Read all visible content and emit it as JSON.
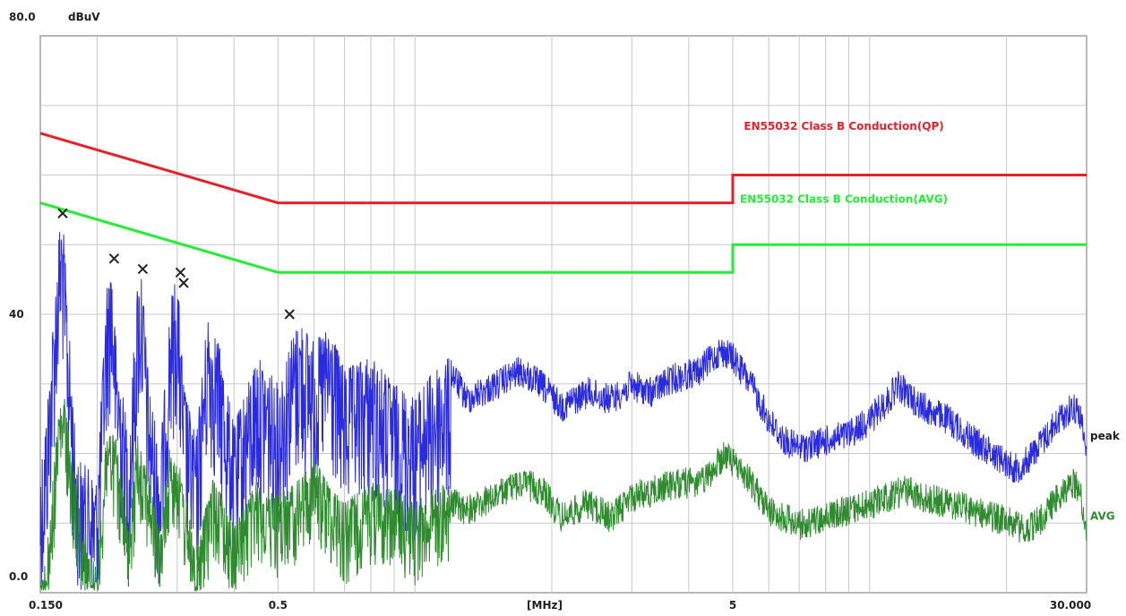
{
  "chart_data": {
    "type": "line",
    "title": "",
    "y_unit_label": "dBuV",
    "x_unit_label": "[MHz]",
    "x_scale": "log",
    "xlim": [
      0.15,
      30.0
    ],
    "ylim": [
      0,
      80
    ],
    "grid": true,
    "x_tick_labels": [
      {
        "value": 0.15,
        "label": "0.150"
      },
      {
        "value": 0.5,
        "label": "0.5"
      },
      {
        "value": 5,
        "label": "5"
      },
      {
        "value": 30,
        "label": "30.000"
      }
    ],
    "y_tick_labels": [
      {
        "value": 80,
        "label": "80.0"
      },
      {
        "value": 40,
        "label": "40"
      },
      {
        "value": 0,
        "label": "0.0"
      }
    ],
    "limit_lines": [
      {
        "name": "EN55032 Class B Conduction(QP)",
        "color": "#e8202a",
        "points": [
          [
            0.15,
            66
          ],
          [
            0.5,
            56
          ],
          [
            5,
            56
          ],
          [
            5,
            60
          ],
          [
            30,
            60
          ]
        ]
      },
      {
        "name": "EN55032 Class B Conduction(AVG)",
        "color": "#22ee33",
        "points": [
          [
            0.15,
            56
          ],
          [
            0.5,
            46
          ],
          [
            5,
            46
          ],
          [
            5,
            50
          ],
          [
            30,
            50
          ]
        ]
      }
    ],
    "series": [
      {
        "name": "peak",
        "color": "#2a2ae0",
        "envelope": [
          [
            0.15,
            18
          ],
          [
            0.155,
            26
          ],
          [
            0.165,
            52
          ],
          [
            0.168,
            54
          ],
          [
            0.172,
            42
          ],
          [
            0.18,
            20
          ],
          [
            0.2,
            16
          ],
          [
            0.21,
            44
          ],
          [
            0.215,
            48
          ],
          [
            0.22,
            36
          ],
          [
            0.235,
            22
          ],
          [
            0.245,
            44
          ],
          [
            0.25,
            47
          ],
          [
            0.26,
            30
          ],
          [
            0.275,
            20
          ],
          [
            0.29,
            42
          ],
          [
            0.3,
            46
          ],
          [
            0.31,
            30
          ],
          [
            0.33,
            22
          ],
          [
            0.35,
            40
          ],
          [
            0.37,
            36
          ],
          [
            0.4,
            24
          ],
          [
            0.45,
            34
          ],
          [
            0.5,
            30
          ],
          [
            0.53,
            36
          ],
          [
            0.56,
            39
          ],
          [
            0.6,
            36
          ],
          [
            0.65,
            38
          ],
          [
            0.7,
            32
          ],
          [
            0.8,
            34
          ],
          [
            0.9,
            30
          ],
          [
            1.0,
            28
          ],
          [
            1.1,
            32
          ],
          [
            1.2,
            34
          ],
          [
            1.3,
            30
          ],
          [
            1.5,
            32
          ],
          [
            1.7,
            34
          ],
          [
            1.9,
            32
          ],
          [
            2.1,
            29
          ],
          [
            2.4,
            31
          ],
          [
            2.7,
            30
          ],
          [
            3.0,
            32
          ],
          [
            3.3,
            31
          ],
          [
            3.7,
            33
          ],
          [
            4.2,
            34
          ],
          [
            4.7,
            37
          ],
          [
            5.0,
            36
          ],
          [
            5.5,
            32
          ],
          [
            6.0,
            27
          ],
          [
            6.5,
            24
          ],
          [
            7.0,
            23
          ],
          [
            8.0,
            24
          ],
          [
            9.0,
            25
          ],
          [
            10.0,
            27
          ],
          [
            11.0,
            30
          ],
          [
            11.5,
            32
          ],
          [
            12.0,
            31
          ],
          [
            13.0,
            29
          ],
          [
            15.0,
            27
          ],
          [
            17.0,
            24
          ],
          [
            19.0,
            22
          ],
          [
            21.0,
            20
          ],
          [
            22.0,
            21
          ],
          [
            24.0,
            24
          ],
          [
            26.0,
            27
          ],
          [
            28.0,
            29
          ],
          [
            29.0,
            28
          ],
          [
            30.0,
            22
          ]
        ]
      },
      {
        "name": "AVG",
        "color": "#2e8b2e",
        "envelope": [
          [
            0.15,
            3
          ],
          [
            0.155,
            6
          ],
          [
            0.165,
            27
          ],
          [
            0.17,
            28
          ],
          [
            0.175,
            20
          ],
          [
            0.19,
            6
          ],
          [
            0.2,
            4
          ],
          [
            0.21,
            24
          ],
          [
            0.22,
            22
          ],
          [
            0.235,
            8
          ],
          [
            0.245,
            23
          ],
          [
            0.255,
            20
          ],
          [
            0.275,
            8
          ],
          [
            0.29,
            22
          ],
          [
            0.3,
            20
          ],
          [
            0.33,
            6
          ],
          [
            0.36,
            17
          ],
          [
            0.4,
            10
          ],
          [
            0.45,
            16
          ],
          [
            0.5,
            14
          ],
          [
            0.55,
            16
          ],
          [
            0.6,
            19
          ],
          [
            0.7,
            13
          ],
          [
            0.8,
            16
          ],
          [
            0.9,
            15
          ],
          [
            1.0,
            13
          ],
          [
            1.15,
            16
          ],
          [
            1.3,
            14
          ],
          [
            1.5,
            16
          ],
          [
            1.7,
            18
          ],
          [
            1.9,
            17
          ],
          [
            2.1,
            13
          ],
          [
            2.4,
            15
          ],
          [
            2.7,
            13
          ],
          [
            3.0,
            16
          ],
          [
            3.4,
            17
          ],
          [
            3.8,
            18
          ],
          [
            4.3,
            18
          ],
          [
            4.8,
            22
          ],
          [
            5.0,
            21
          ],
          [
            5.5,
            18
          ],
          [
            6.0,
            14
          ],
          [
            6.5,
            13
          ],
          [
            7.0,
            12
          ],
          [
            8.0,
            13
          ],
          [
            9.0,
            14
          ],
          [
            10.0,
            15
          ],
          [
            11.0,
            16
          ],
          [
            12.0,
            17
          ],
          [
            13.0,
            16
          ],
          [
            15.0,
            15
          ],
          [
            17.0,
            14
          ],
          [
            19.0,
            13
          ],
          [
            21.0,
            12
          ],
          [
            22.0,
            11
          ],
          [
            24.0,
            13
          ],
          [
            26.0,
            16
          ],
          [
            28.0,
            18
          ],
          [
            29.0,
            17
          ],
          [
            30.0,
            11
          ]
        ]
      }
    ],
    "marker_points": [
      {
        "x": 0.168,
        "y": 54.5
      },
      {
        "x": 0.218,
        "y": 48
      },
      {
        "x": 0.252,
        "y": 46.5
      },
      {
        "x": 0.305,
        "y": 46
      },
      {
        "x": 0.31,
        "y": 44.5
      },
      {
        "x": 0.53,
        "y": 40
      }
    ]
  }
}
